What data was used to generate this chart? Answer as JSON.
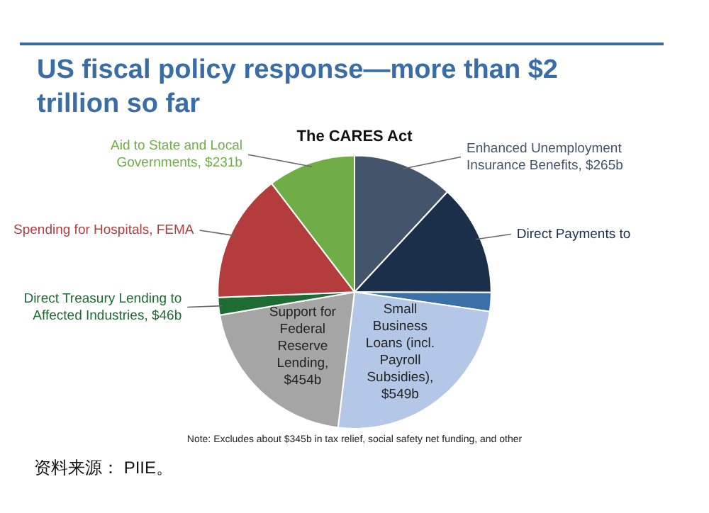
{
  "chart_data": {
    "type": "pie",
    "title": "US fiscal policy response—more than $2 trillion so far",
    "subtitle": "The CARES Act",
    "categories": [
      "Enhanced Unemployment Insurance Benefits, $265b",
      "Direct Payments to",
      null,
      "Small Business Loans (incl. Payroll Subsidies), $549b",
      "Support for Federal Reserve Lending, $454b",
      "Direct Treasury Lending to Affected Industries, $46b",
      "Spending for Hospitals, FEMA",
      "Aid to State and Local Governments, $231b"
    ],
    "values": [
      265,
      293,
      50,
      549,
      454,
      46,
      340,
      231
    ],
    "colors": [
      "#44546a",
      "#1c2f4a",
      "#3a6fa8",
      "#b4c7e7",
      "#a5a5a5",
      "#1e6b33",
      "#b43c3c",
      "#70ad47"
    ],
    "annotations": [
      "Note: Excludes about $345b in tax relief, social safety net funding, and other",
      "资料来源： PIIE。"
    ],
    "legend": false
  }
}
